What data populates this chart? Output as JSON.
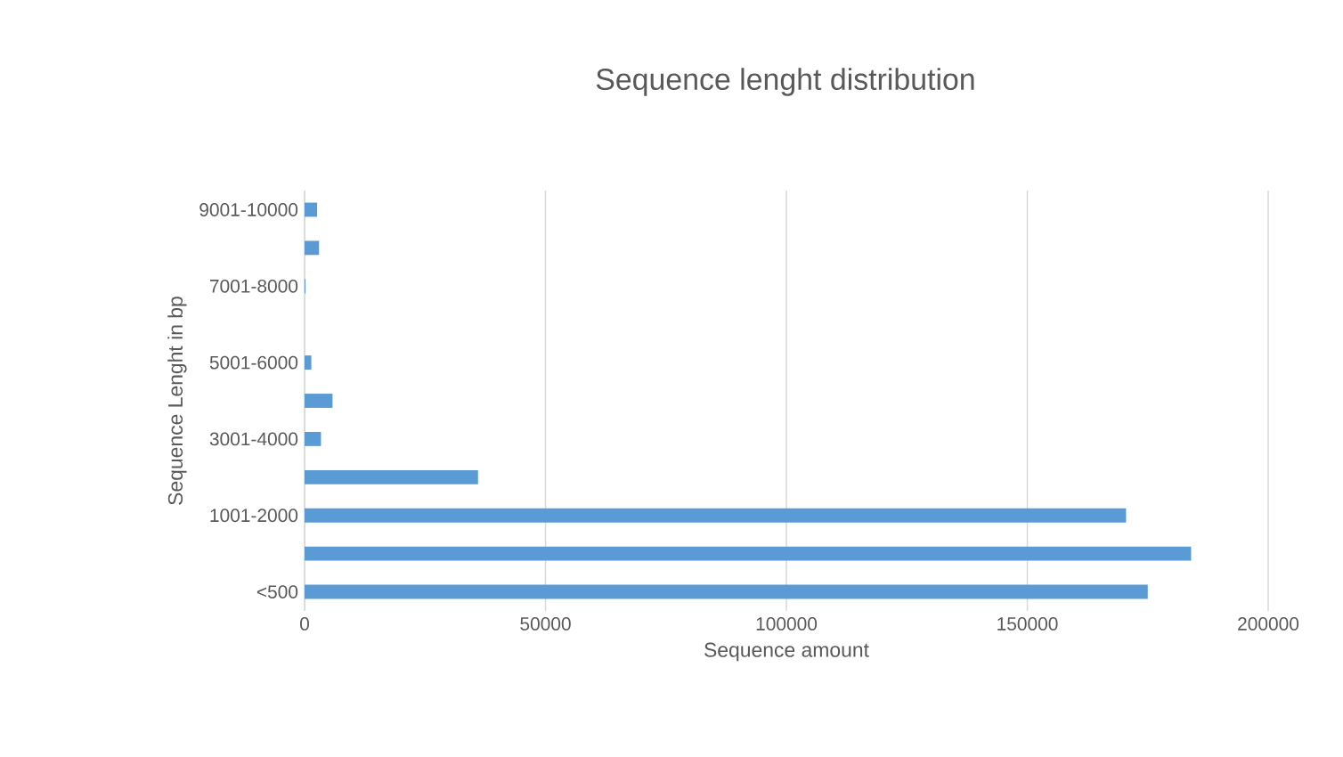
{
  "chart_data": {
    "type": "bar",
    "orientation": "horizontal",
    "title": "Sequence lenght distribution",
    "xlabel": "Sequence amount",
    "ylabel": "Sequence Lenght in bp",
    "categories": [
      "9001-10000",
      null,
      "7001-8000",
      null,
      "5001-6000",
      null,
      "3001-4000",
      null,
      "1001-2000",
      null,
      "<500"
    ],
    "values": [
      2600,
      3000,
      200,
      0,
      1400,
      5800,
      3400,
      36000,
      170500,
      184000,
      175000
    ],
    "color": "#5b9bd5",
    "xlim": [
      0,
      200000
    ],
    "xticks": [
      0,
      50000,
      100000,
      150000,
      200000
    ],
    "grid": "x"
  }
}
